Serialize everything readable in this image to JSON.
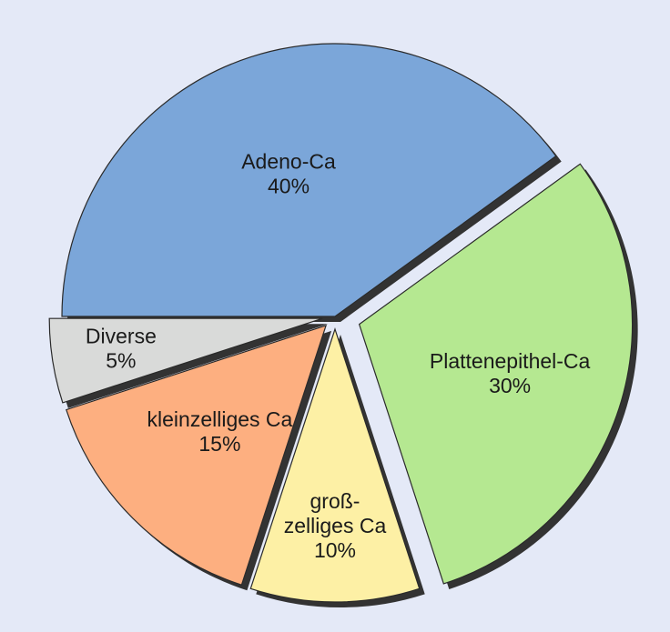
{
  "chart_data": {
    "type": "pie",
    "background": "#e4e9f7",
    "legend": "none",
    "slices": [
      {
        "label": [
          "Adeno-Ca"
        ],
        "value_text": "40%",
        "value": 40,
        "color": "#7ba6d9"
      },
      {
        "label": [
          "Plattenepithel-Ca"
        ],
        "value_text": "30%",
        "value": 30,
        "color": "#b5e891"
      },
      {
        "label": [
          "groß-",
          "zelliges Ca"
        ],
        "value_text": "10%",
        "value": 10,
        "color": "#fdf0a5"
      },
      {
        "label": [
          "kleinzelliges Ca"
        ],
        "value_text": "15%",
        "value": 15,
        "color": "#fdaf80"
      },
      {
        "label": [
          "Diverse"
        ],
        "value_text": "5%",
        "value": 5,
        "color": "#d9dad9"
      }
    ]
  }
}
